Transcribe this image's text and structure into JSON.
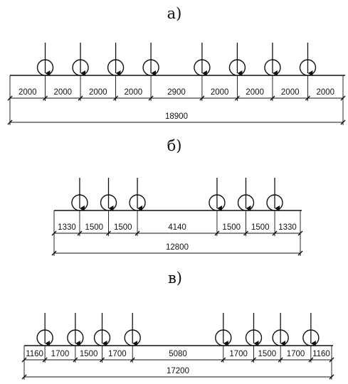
{
  "panels": [
    {
      "label": "а)",
      "segments": [
        2000,
        2000,
        2000,
        2000,
        2900,
        2000,
        2000,
        2000,
        2000
      ],
      "total": "18900"
    },
    {
      "label": "б)",
      "segments": [
        1330,
        1500,
        1500,
        4140,
        1500,
        1500,
        1330
      ],
      "total": "12800"
    },
    {
      "label": "в)",
      "segments": [
        1160,
        1700,
        1500,
        1700,
        5080,
        1700,
        1500,
        1700,
        1160
      ],
      "total": "17200"
    }
  ]
}
